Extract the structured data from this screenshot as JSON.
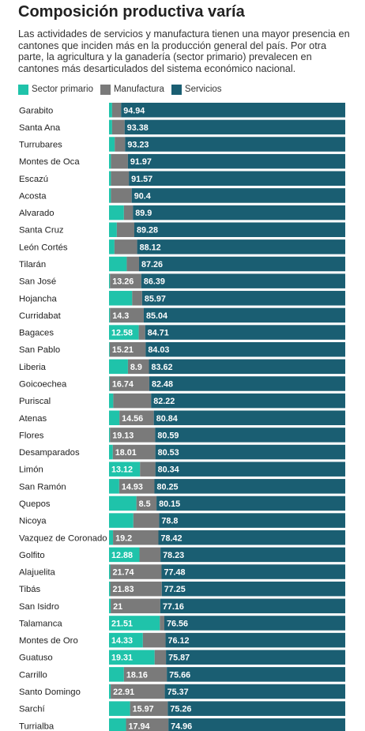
{
  "title": "Composición productiva varía",
  "subtitle": "Las actividades de servicios y manufactura tienen una mayor presencia en cantones que inciden más en la producción general del país. Por otra parte, la agricultura y la ganadería (sector primario) prevalecen en cantones más desarticulados del sistema económico nacional.",
  "legend": [
    {
      "name": "Sector primario",
      "color": "#1fc3aa"
    },
    {
      "name": "Manufactura",
      "color": "#7a7a7a"
    },
    {
      "name": "Servicios",
      "color": "#1a5e72"
    }
  ],
  "chart_data": {
    "type": "bar",
    "orientation": "horizontal",
    "stacked": true,
    "xlim": [
      0,
      100
    ],
    "categories": [
      "Garabito",
      "Santa Ana",
      "Turrubares",
      "Montes de Oca",
      "Escazú",
      "Acosta",
      "Alvarado",
      "Santa Cruz",
      "León Cortés",
      "Tilarán",
      "San José",
      "Hojancha",
      "Curridabat",
      "Bagaces",
      "San Pablo",
      "Liberia",
      "Goicoechea",
      "Puriscal",
      "Atenas",
      "Flores",
      "Desamparados",
      "Limón",
      "San Ramón",
      "Quepos",
      "Nicoya",
      "Vazquez de Coronado",
      "Golfito",
      "Alajuelita",
      "Tibás",
      "San Isidro",
      "Talamanca",
      "Montes de Oro",
      "Guatuso",
      "Carrillo",
      "Santo Domingo",
      "Sarchí",
      "Turrialba"
    ],
    "series": [
      {
        "name": "Sector primario",
        "color": "#1fc3aa",
        "values": [
          1.3,
          1.3,
          2.4,
          0.8,
          0.8,
          0.8,
          6.3,
          3.3,
          2.3,
          7.5,
          0.4,
          9.8,
          0.4,
          12.58,
          0.3,
          8.0,
          0.3,
          1.8,
          4.4,
          0.4,
          1.6,
          13.12,
          4.3,
          11.6,
          10.3,
          1.7,
          12.88,
          0.5,
          0.5,
          0.7,
          21.51,
          14.33,
          19.31,
          6.3,
          0.7,
          8.9,
          7.2
        ],
        "labels": [
          "",
          "",
          "",
          "",
          "",
          "",
          "",
          "",
          "",
          "",
          "",
          "",
          "",
          "12.58",
          "",
          "",
          "",
          "",
          "",
          "",
          "",
          "13.12",
          "",
          "",
          "",
          "",
          "12.88",
          "",
          "",
          "",
          "21.51",
          "14.33",
          "19.31",
          "",
          "",
          "",
          ""
        ]
      },
      {
        "name": "Manufactura",
        "color": "#7a7a7a",
        "values": [
          3.8,
          5.3,
          4.4,
          7.2,
          7.6,
          8.8,
          3.8,
          7.4,
          9.6,
          5.2,
          13.26,
          4.2,
          14.3,
          2.7,
          15.21,
          8.9,
          16.74,
          16.0,
          14.56,
          19.13,
          18.01,
          6.5,
          14.93,
          8.5,
          10.9,
          19.2,
          8.9,
          21.74,
          21.83,
          21.0,
          1.9,
          9.6,
          4.8,
          18.16,
          22.91,
          15.97,
          17.94
        ],
        "labels": [
          "",
          "",
          "",
          "",
          "",
          "",
          "",
          "",
          "",
          "",
          "13.26",
          "",
          "14.3",
          "",
          "15.21",
          "8.9",
          "16.74",
          "",
          "14.56",
          "19.13",
          "18.01",
          "",
          "14.93",
          "8.5",
          "",
          "19.2",
          "",
          "21.74",
          "21.83",
          "21",
          "",
          "",
          "",
          "18.16",
          "22.91",
          "15.97",
          "17.94"
        ]
      },
      {
        "name": "Servicios",
        "color": "#1a5e72",
        "values": [
          94.94,
          93.38,
          93.23,
          91.97,
          91.57,
          90.4,
          89.9,
          89.28,
          88.12,
          87.26,
          86.39,
          85.97,
          85.04,
          84.71,
          84.03,
          83.62,
          82.48,
          82.22,
          80.84,
          80.59,
          80.53,
          80.34,
          80.25,
          80.15,
          78.8,
          78.42,
          78.23,
          77.48,
          77.25,
          77.16,
          76.56,
          76.12,
          75.87,
          75.66,
          75.37,
          75.26,
          74.96
        ],
        "labels": [
          "94.94",
          "93.38",
          "93.23",
          "91.97",
          "91.57",
          "90.4",
          "89.9",
          "89.28",
          "88.12",
          "87.26",
          "86.39",
          "85.97",
          "85.04",
          "84.71",
          "84.03",
          "83.62",
          "82.48",
          "82.22",
          "80.84",
          "80.59",
          "80.53",
          "80.34",
          "80.25",
          "80.15",
          "78.8",
          "78.42",
          "78.23",
          "77.48",
          "77.25",
          "77.16",
          "76.56",
          "76.12",
          "75.87",
          "75.66",
          "75.37",
          "75.26",
          "74.96"
        ]
      }
    ]
  }
}
